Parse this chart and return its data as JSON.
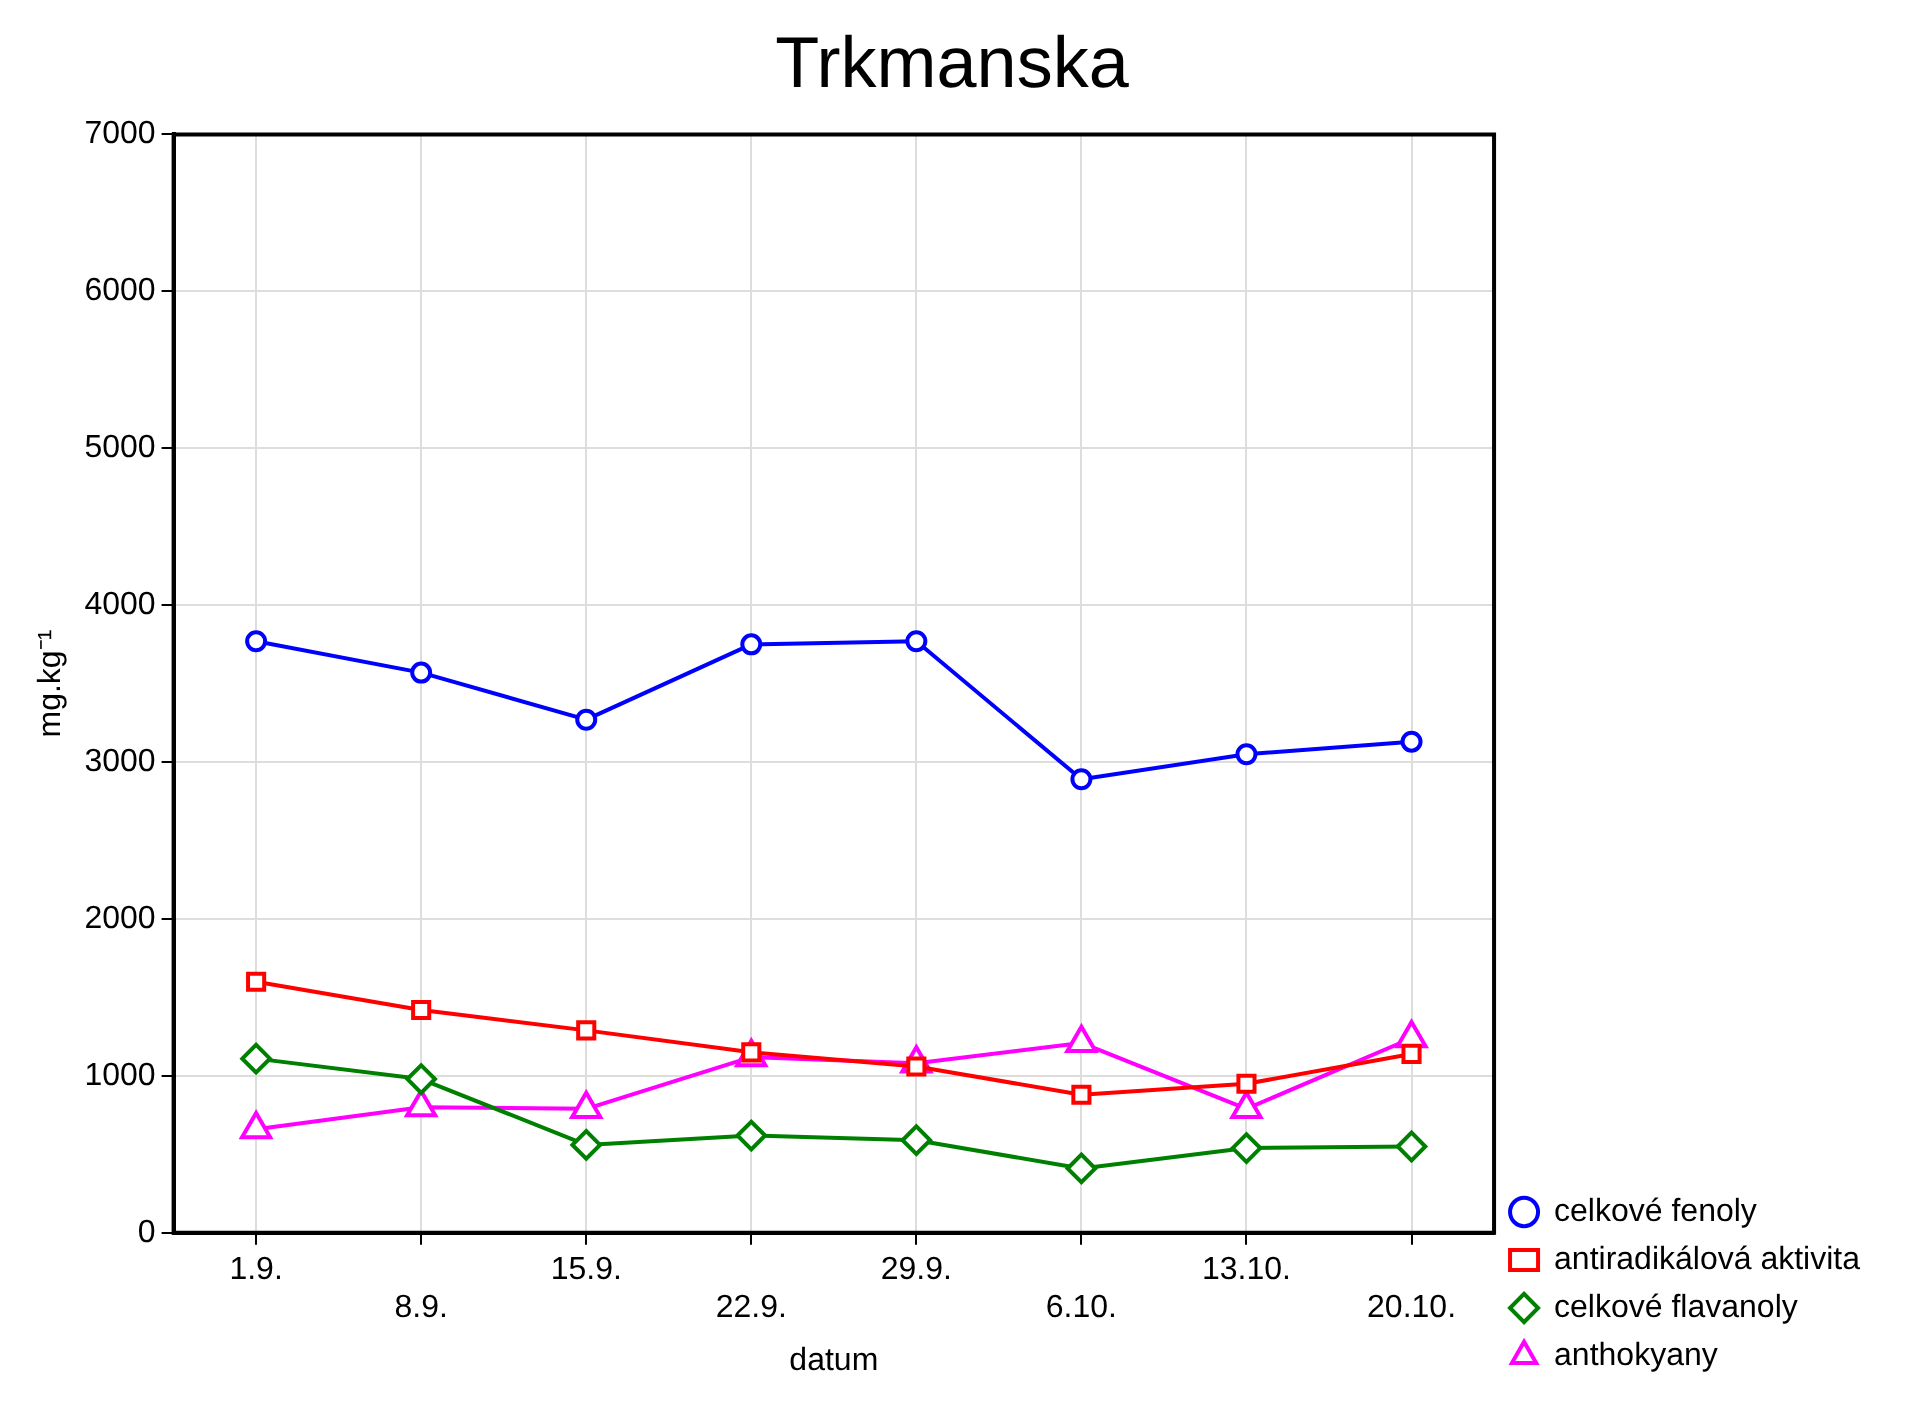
{
  "chart_data": {
    "type": "line",
    "title": "Trkmanska",
    "xlabel": "datum",
    "ylabel": "mg.kg⁻¹",
    "categories": [
      "1.9.",
      "8.9.",
      "15.9.",
      "22.9.",
      "29.9.",
      "6.10.",
      "13.10.",
      "20.10."
    ],
    "series": [
      {
        "name": "celkové fenoly",
        "color": "#0000ff",
        "marker": "circle",
        "values": [
          3770,
          3570,
          3270,
          3750,
          3770,
          2890,
          3050,
          3130
        ]
      },
      {
        "name": "antiradikálová aktivita",
        "color": "#ff0000",
        "marker": "square",
        "values": [
          1600,
          1420,
          1290,
          1150,
          1060,
          880,
          950,
          1140
        ]
      },
      {
        "name": "celkové flavanoly",
        "color": "#008000",
        "marker": "diamond",
        "values": [
          1110,
          980,
          560,
          620,
          590,
          410,
          540,
          550
        ]
      },
      {
        "name": "anthokyany",
        "color": "#ff00ff",
        "marker": "triangle",
        "values": [
          660,
          800,
          790,
          1120,
          1080,
          1210,
          790,
          1240
        ]
      }
    ],
    "ylim": [
      0,
      7000
    ],
    "yticks": [
      0,
      1000,
      2000,
      3000,
      4000,
      5000,
      6000,
      7000
    ],
    "grid": true,
    "legend": "bottom right",
    "line_style": "solid"
  }
}
